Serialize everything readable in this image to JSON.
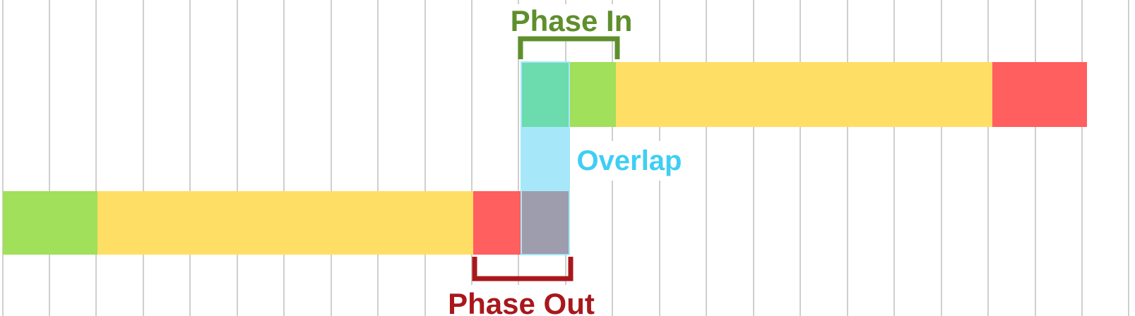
{
  "labels": {
    "phase_in": "Phase In",
    "overlap": "Overlap",
    "phase_out": "Phase Out"
  },
  "colors": {
    "grid": "#cfcfcf",
    "green": "#a0e05a",
    "yellow": "#ffde66",
    "red": "#ff5f5f",
    "teal": "#6cdbae",
    "overlap_blue": "#a6e8fa",
    "overlap_mixed": "#9d9dae",
    "phase_in_label": "#5e8f2c",
    "overlap_label": "#3fcef5",
    "phase_out_label": "#a8171c"
  }
}
